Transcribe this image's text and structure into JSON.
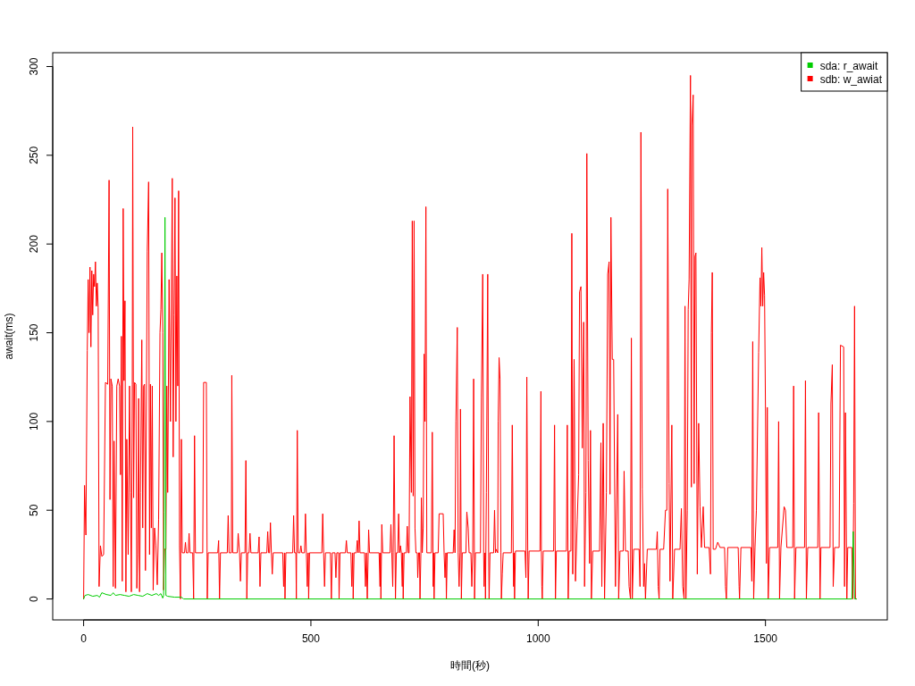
{
  "chart_data": {
    "type": "line",
    "xlabel": "時間(秒)",
    "ylabel": "await(ms)",
    "xlim": [
      -68,
      1768
    ],
    "ylim": [
      -11.8,
      307.8
    ],
    "xticks": [
      0,
      500,
      1000,
      1500
    ],
    "yticks": [
      0,
      50,
      100,
      150,
      200,
      250,
      300
    ],
    "legend": "top right",
    "series": [
      {
        "name": "sda: r_await",
        "color": "#00cd00",
        "x": [
          0,
          3,
          10,
          20,
          30,
          35,
          40,
          50,
          60,
          65,
          70,
          80,
          90,
          100,
          110,
          120,
          130,
          140,
          150,
          160,
          165,
          170,
          174,
          176,
          177,
          179,
          181,
          185,
          200,
          215,
          220,
          1690,
          1693,
          1696,
          1700
        ],
        "values": [
          0,
          2,
          2.5,
          1.5,
          2,
          1,
          3.5,
          2.5,
          2,
          3.5,
          2,
          2.5,
          2,
          1.5,
          2.5,
          2,
          1.5,
          3,
          2,
          3,
          2,
          3,
          0.5,
          2,
          49,
          215,
          2,
          1.5,
          1,
          1,
          0,
          0,
          38,
          0,
          0
        ]
      },
      {
        "name": "sdb: w_awiat",
        "color": "#ff0000",
        "x": [
          0,
          2,
          5,
          8,
          10,
          12,
          14,
          16,
          18,
          20,
          22,
          24,
          26,
          28,
          30,
          32,
          34,
          37,
          40,
          44,
          48,
          53,
          56,
          58,
          60,
          63,
          65,
          67,
          70,
          73,
          76,
          79,
          81,
          83,
          85,
          87,
          89,
          91,
          93,
          95,
          98,
          101,
          103,
          105,
          107,
          108,
          110,
          112,
          115,
          117,
          119,
          121,
          123,
          125,
          128,
          130,
          132,
          134,
          136,
          140,
          143,
          145,
          147,
          149,
          151,
          153,
          156,
          159,
          162,
          165,
          168,
          170,
          172,
          174,
          176,
          178,
          181,
          183,
          185,
          188,
          191,
          195,
          197,
          199,
          201,
          203,
          205,
          207,
          209,
          211,
          213,
          215,
          217,
          222,
          224,
          226,
          230,
          232,
          234,
          240,
          242,
          244,
          246,
          262,
          264,
          270,
          272,
          274,
          295,
          297,
          299,
          301,
          316,
          318,
          320,
          325,
          326,
          328,
          338,
          340,
          343,
          345,
          347,
          355,
          357,
          359,
          361,
          364,
          366,
          368,
          384,
          386,
          388,
          390,
          403,
          405,
          407,
          409,
          411,
          413,
          415,
          417,
          438,
          440,
          442,
          443,
          445,
          460,
          462,
          464,
          467,
          468,
          470,
          472,
          476,
          478,
          480,
          486,
          488,
          490,
          492,
          494,
          495,
          497,
          524,
          526,
          528,
          530,
          532,
          543,
          545,
          547,
          553,
          555,
          557,
          561,
          562,
          564,
          576,
          578,
          580,
          588,
          590,
          592,
          593,
          595,
          600,
          602,
          604,
          606,
          608,
          618,
          620,
          622,
          624,
          626,
          627,
          629,
          650,
          652,
          653,
          654,
          656,
          658,
          674,
          676,
          678,
          680,
          681,
          683,
          686,
          688,
          691,
          693,
          695,
          697,
          699,
          701,
          702,
          703,
          705,
          710,
          712,
          714,
          716,
          718,
          721,
          723,
          725,
          727,
          729,
          731,
          734,
          735,
          737,
          739,
          740,
          742,
          743,
          745,
          747,
          749,
          751,
          753,
          755,
          765,
          767,
          769,
          770,
          771,
          773,
          780,
          782,
          791,
          793,
          795,
          797,
          798,
          800,
          813,
          815,
          817,
          819,
          822,
          824,
          826,
          828,
          829,
          831,
          833,
          841,
          843,
          846,
          848,
          852,
          854,
          856,
          858,
          860,
          862,
          873,
          875,
          878,
          880,
          881,
          883,
          884,
          886,
          889,
          891,
          892,
          894,
          902,
          904,
          906,
          908,
          911,
          912,
          914,
          916,
          918,
          919,
          921,
          923,
          941,
          943,
          945,
          946,
          947,
          948,
          950,
          971,
          973,
          975,
          977,
          978,
          980,
          1004,
          1006,
          1007,
          1008,
          1009,
          1011,
          1034,
          1036,
          1038,
          1040,
          1062,
          1064,
          1066,
          1068,
          1072,
          1074,
          1076,
          1079,
          1082,
          1086,
          1089,
          1091,
          1094,
          1097,
          1100,
          1102,
          1105,
          1107,
          1110,
          1113,
          1115,
          1117,
          1120,
          1135,
          1138,
          1140,
          1143,
          1146,
          1150,
          1153,
          1156,
          1158,
          1160,
          1163,
          1166,
          1170,
          1175,
          1177,
          1180,
          1187,
          1189,
          1192,
          1198,
          1200,
          1203,
          1205,
          1207,
          1210,
          1222,
          1224,
          1226,
          1229,
          1232,
          1234,
          1236,
          1240,
          1260,
          1262,
          1264,
          1266,
          1268,
          1276,
          1280,
          1283,
          1285,
          1288,
          1290,
          1294,
          1296,
          1300,
          1312,
          1315,
          1318,
          1321,
          1323,
          1325,
          1328,
          1330,
          1332,
          1335,
          1337,
          1338,
          1341,
          1343,
          1345,
          1347,
          1350,
          1353,
          1356,
          1359,
          1363,
          1366,
          1376,
          1379,
          1381,
          1383,
          1385,
          1390,
          1395,
          1400,
          1410,
          1412,
          1414,
          1417,
          1440,
          1442,
          1443,
          1446,
          1468,
          1470,
          1472,
          1474,
          1477,
          1480,
          1485,
          1488,
          1490,
          1492,
          1494,
          1496,
          1498,
          1500,
          1502,
          1504,
          1506,
          1509,
          1527,
          1529,
          1531,
          1534,
          1541,
          1544,
          1547,
          1560,
          1562,
          1564,
          1567,
          1586,
          1588,
          1590,
          1593,
          1615,
          1617,
          1620,
          1622,
          1642,
          1644,
          1647,
          1649,
          1652,
          1662,
          1665,
          1672,
          1674,
          1676,
          1679,
          1681,
          1690,
          1692,
          1694,
          1696,
          1698,
          1700
        ],
        "values": [
          0,
          64,
          36,
          140,
          180,
          150,
          187,
          142,
          185,
          160,
          183,
          176,
          190,
          165,
          178,
          164,
          7,
          30,
          24,
          25,
          122,
          121,
          236,
          56,
          124,
          120,
          7,
          89,
          6,
          120,
          124,
          120,
          70,
          148,
          10,
          220,
          123,
          168,
          4,
          90,
          25,
          120,
          60,
          4,
          121,
          266,
          57,
          122,
          121,
          6,
          25,
          113,
          4,
          60,
          146,
          40,
          120,
          121,
          16,
          196,
          235,
          25,
          121,
          40,
          120,
          5,
          40,
          30,
          8,
          45,
          150,
          163,
          195,
          150,
          5,
          28,
          28,
          120,
          60,
          180,
          100,
          237,
          80,
          160,
          226,
          100,
          182,
          120,
          230,
          30,
          0,
          90,
          26,
          26,
          32,
          26,
          26,
          37,
          26,
          26,
          0,
          92,
          26,
          26,
          122,
          122,
          0,
          26,
          26,
          33,
          0,
          26,
          26,
          47,
          26,
          26,
          126,
          26,
          26,
          37,
          26,
          10,
          26,
          26,
          78,
          0,
          26,
          26,
          37,
          26,
          26,
          35,
          7,
          26,
          26,
          38,
          26,
          26,
          43,
          26,
          14,
          26,
          26,
          7,
          26,
          0,
          26,
          26,
          47,
          26,
          26,
          0,
          95,
          26,
          26,
          30,
          26,
          26,
          48,
          26,
          7,
          26,
          0,
          26,
          26,
          48,
          26,
          7,
          26,
          26,
          0,
          26,
          26,
          12,
          26,
          26,
          0,
          26,
          26,
          33,
          26,
          26,
          7,
          26,
          0,
          26,
          26,
          33,
          26,
          44,
          26,
          26,
          7,
          26,
          0,
          26,
          39,
          26,
          26,
          7,
          26,
          0,
          42,
          26,
          26,
          42,
          26,
          7,
          26,
          92,
          0,
          26,
          26,
          48,
          26,
          30,
          26,
          7,
          26,
          0,
          26,
          26,
          41,
          26,
          26,
          114,
          60,
          213,
          58,
          213,
          40,
          26,
          26,
          12,
          26,
          26,
          0,
          26,
          57,
          26,
          40,
          138,
          100,
          221,
          26,
          26,
          94,
          7,
          26,
          0,
          26,
          26,
          48,
          48,
          26,
          12,
          26,
          0,
          26,
          26,
          39,
          26,
          100,
          153,
          26,
          7,
          26,
          107,
          0,
          26,
          26,
          49,
          40,
          26,
          26,
          7,
          26,
          124,
          0,
          26,
          26,
          114,
          183,
          26,
          7,
          26,
          0,
          60,
          183,
          26,
          0,
          26,
          26,
          50,
          26,
          28,
          26,
          100,
          136,
          124,
          26,
          0,
          14,
          26,
          26,
          98,
          26,
          7,
          26,
          0,
          27,
          27,
          12,
          125,
          27,
          0,
          27,
          27,
          117,
          27,
          7,
          0,
          27,
          27,
          98,
          0,
          27,
          27,
          98,
          0,
          27,
          27,
          206,
          14,
          135,
          10,
          45,
          70,
          173,
          176,
          85,
          156,
          7,
          60,
          251,
          78,
          20,
          95,
          0,
          27,
          27,
          88,
          7,
          99,
          0,
          60,
          183,
          190,
          59,
          215,
          135,
          135,
          7,
          104,
          0,
          27,
          27,
          72,
          27,
          27,
          7,
          0,
          147,
          0,
          28,
          28,
          7,
          263,
          62,
          7,
          20,
          0,
          28,
          28,
          38,
          7,
          0,
          28,
          28,
          50,
          50,
          231,
          65,
          10,
          98,
          0,
          28,
          28,
          51,
          7,
          0,
          165,
          0,
          50,
          163,
          180,
          295,
          63,
          267,
          284,
          65,
          193,
          195,
          14,
          99,
          52,
          29,
          52,
          29,
          29,
          14,
          150,
          184,
          28,
          28,
          32,
          29,
          29,
          7,
          0,
          29,
          29,
          7,
          0,
          29,
          29,
          10,
          145,
          0,
          29,
          50,
          139,
          181,
          165,
          198,
          165,
          184,
          171,
          107,
          20,
          108,
          0,
          29,
          29,
          100,
          0,
          29,
          52,
          50,
          29,
          29,
          120,
          0,
          29,
          29,
          123,
          0,
          29,
          29,
          105,
          0,
          29,
          29,
          110,
          132,
          7,
          29,
          29,
          143,
          142,
          7,
          105,
          0,
          29,
          29,
          0,
          54,
          165,
          0,
          0
        ]
      }
    ]
  }
}
